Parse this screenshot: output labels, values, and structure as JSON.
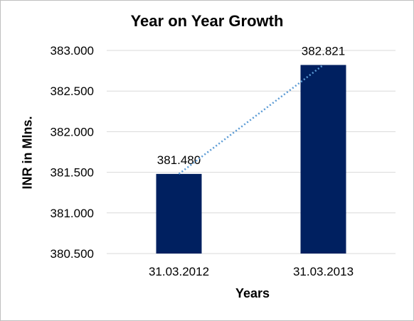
{
  "chart_data": {
    "type": "bar",
    "title": "Year on Year Growth",
    "xlabel": "Years",
    "ylabel": "INR in Mlns.",
    "categories": [
      "31.03.2012",
      "31.03.2013"
    ],
    "values": [
      381.48,
      382.821
    ],
    "data_labels": [
      "381.480",
      "382.821"
    ],
    "ylim": [
      380.5,
      383.0
    ],
    "yticks": [
      "380.500",
      "381.000",
      "381.500",
      "382.000",
      "382.500",
      "383.000"
    ],
    "ytick_values": [
      380.5,
      381.0,
      381.5,
      382.0,
      382.5,
      383.0
    ],
    "grid": true,
    "trendline": "linear",
    "colors": {
      "bar": "#002060",
      "trendline": "#5b9bd5",
      "grid": "#d9d9d9"
    }
  }
}
